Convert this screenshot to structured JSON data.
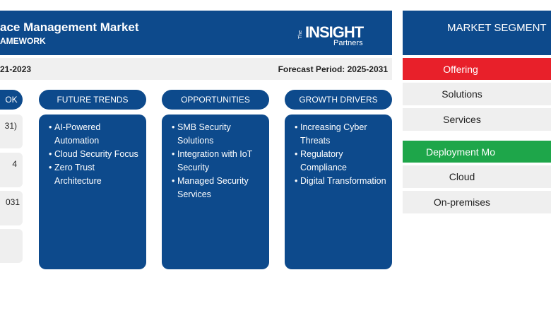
{
  "header": {
    "title": "ace Management Market",
    "subtitle": "AMEWORK",
    "logo": {
      "the": "The",
      "insight": "INSIGHT",
      "partners": "Partners"
    }
  },
  "period_bar": {
    "historical": "21-2023",
    "forecast": "Forecast Period: 2025-2031"
  },
  "columns": [
    {
      "title": "OK",
      "items": [
        "31)",
        "4",
        "031",
        ""
      ]
    },
    {
      "title": "FUTURE TRENDS",
      "items": [
        "AI-Powered Automation",
        "Cloud Security Focus",
        "Zero Trust Architecture"
      ]
    },
    {
      "title": "OPPORTUNITIES",
      "items": [
        "SMB Security Solutions",
        "Integration with IoT Security",
        "Managed Security Services"
      ]
    },
    {
      "title": "GROWTH DRIVERS",
      "items": [
        "Increasing Cyber Threats",
        "Regulatory Compliance",
        "Digital Transformation"
      ]
    }
  ],
  "segments": {
    "title": "MARKET SEGMENT",
    "groups": [
      {
        "name": "Offering",
        "items": [
          "Solutions",
          "Services"
        ]
      },
      {
        "name": "Deployment Mo",
        "items": [
          "Cloud",
          "On-premises"
        ]
      }
    ]
  }
}
